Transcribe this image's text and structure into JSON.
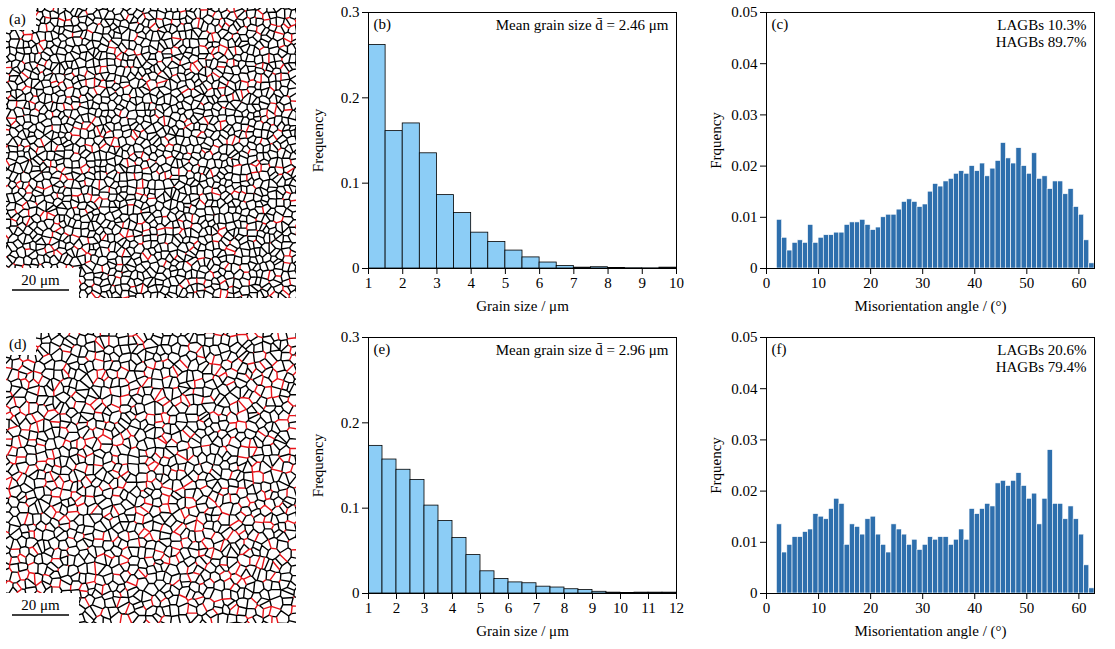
{
  "chart_data": [
    {
      "type": "image",
      "panel": "(a)",
      "scale_bar": {
        "value": 20,
        "label": "20 μm"
      },
      "mean_grain_size": 2.46,
      "lagbs": 10.3
    },
    {
      "type": "histogram",
      "panel": "(b)",
      "xlabel": "Grain size / μm",
      "ylabel": "Frequency",
      "annotations": [
        "Mean grain size d̄ = 2.46 μm"
      ],
      "color": "#8ccdf6",
      "bins": [
        1,
        1.5,
        2,
        2.5,
        3,
        3.5,
        4,
        4.5,
        5,
        5.5,
        6,
        6.5,
        7,
        7.5,
        8,
        8.5,
        9,
        9.5,
        10
      ],
      "counts": [
        0.262,
        0.161,
        0.17,
        0.135,
        0.086,
        0.065,
        0.042,
        0.031,
        0.021,
        0.013,
        0.007,
        0.003,
        0.001,
        0.0015,
        0.0005,
        0.0003,
        0.0002,
        0.001
      ],
      "xlim": [
        1,
        10
      ],
      "xticks": [
        1,
        2,
        3,
        4,
        5,
        6,
        7,
        8,
        9,
        10
      ],
      "ylim": [
        0,
        0.3
      ],
      "yticks": [
        0,
        0.1,
        0.2,
        0.3
      ]
    },
    {
      "type": "histogram",
      "panel": "(c)",
      "xlabel": "Misorientation angle / (°)",
      "ylabel": "Frquency",
      "annotations": [
        "LAGBs 10.3%",
        "HAGBs 89.7%"
      ],
      "color": "#2e6fad",
      "bins": [
        2,
        3,
        4,
        5,
        6,
        7,
        8,
        9,
        10,
        11,
        12,
        13,
        14,
        15,
        16,
        17,
        18,
        19,
        20,
        21,
        22,
        23,
        24,
        25,
        26,
        27,
        28,
        29,
        30,
        31,
        32,
        33,
        34,
        35,
        36,
        37,
        38,
        39,
        40,
        41,
        42,
        43,
        44,
        45,
        46,
        47,
        48,
        49,
        50,
        51,
        52,
        53,
        54,
        55,
        56,
        57,
        58,
        59,
        60,
        61,
        62,
        63
      ],
      "counts": [
        0.0095,
        0.006,
        0.0035,
        0.005,
        0.0055,
        0.005,
        0.0085,
        0.005,
        0.006,
        0.0065,
        0.0065,
        0.007,
        0.007,
        0.0085,
        0.009,
        0.009,
        0.0095,
        0.0085,
        0.0075,
        0.008,
        0.01,
        0.0105,
        0.0105,
        0.0115,
        0.013,
        0.0135,
        0.013,
        0.012,
        0.0125,
        0.015,
        0.0165,
        0.016,
        0.017,
        0.0175,
        0.0185,
        0.019,
        0.0185,
        0.02,
        0.019,
        0.0205,
        0.018,
        0.0195,
        0.021,
        0.0245,
        0.0215,
        0.0205,
        0.0235,
        0.02,
        0.0185,
        0.0225,
        0.0175,
        0.018,
        0.0155,
        0.017,
        0.017,
        0.0145,
        0.0155,
        0.012,
        0.0105,
        0.0055,
        0.001
      ],
      "xlim": [
        0,
        63
      ],
      "xticks": [
        0,
        10,
        20,
        30,
        40,
        50,
        60
      ],
      "ylim": [
        0,
        0.05
      ],
      "yticks": [
        0,
        0.01,
        0.02,
        0.03,
        0.04,
        0.05
      ]
    },
    {
      "type": "image",
      "panel": "(d)",
      "scale_bar": {
        "value": 20,
        "label": "20 μm"
      },
      "mean_grain_size": 2.96,
      "lagbs": 20.6
    },
    {
      "type": "histogram",
      "panel": "(e)",
      "xlabel": "Grain size / μm",
      "ylabel": "Frequency",
      "annotations": [
        "Mean grain size d̄ = 2.96 μm"
      ],
      "color": "#8ccdf6",
      "bins": [
        1,
        1.5,
        2,
        2.5,
        3,
        3.5,
        4,
        4.5,
        5,
        5.5,
        6,
        6.5,
        7,
        7.5,
        8,
        8.5,
        9,
        9.5,
        10,
        10.5,
        11,
        11.5,
        12
      ],
      "counts": [
        0.173,
        0.157,
        0.145,
        0.133,
        0.103,
        0.085,
        0.065,
        0.045,
        0.026,
        0.017,
        0.013,
        0.012,
        0.008,
        0.007,
        0.005,
        0.004,
        0.002,
        0.001,
        0.0005,
        0.001,
        0.001,
        0.001
      ],
      "xlim": [
        1,
        12
      ],
      "xticks": [
        1,
        2,
        3,
        4,
        5,
        6,
        7,
        8,
        9,
        10,
        11,
        12
      ],
      "ylim": [
        0,
        0.3
      ],
      "yticks": [
        0,
        0.1,
        0.2,
        0.3
      ]
    },
    {
      "type": "histogram",
      "panel": "(f)",
      "xlabel": "Misorientation angle / (°)",
      "ylabel": "Frquency",
      "annotations": [
        "LAGBs 20.6%",
        "HAGBs 79.4%"
      ],
      "color": "#2e6fad",
      "bins": [
        2,
        3,
        4,
        5,
        6,
        7,
        8,
        9,
        10,
        11,
        12,
        13,
        14,
        15,
        16,
        17,
        18,
        19,
        20,
        21,
        22,
        23,
        24,
        25,
        26,
        27,
        28,
        29,
        30,
        31,
        32,
        33,
        34,
        35,
        36,
        37,
        38,
        39,
        40,
        41,
        42,
        43,
        44,
        45,
        46,
        47,
        48,
        49,
        50,
        51,
        52,
        53,
        54,
        55,
        56,
        57,
        58,
        59,
        60,
        61,
        62,
        63
      ],
      "counts": [
        0.0135,
        0.008,
        0.0095,
        0.011,
        0.011,
        0.012,
        0.0125,
        0.0155,
        0.015,
        0.0145,
        0.0165,
        0.0185,
        0.0175,
        0.0095,
        0.0135,
        0.013,
        0.0115,
        0.0145,
        0.015,
        0.0115,
        0.0095,
        0.008,
        0.0135,
        0.0125,
        0.0115,
        0.0095,
        0.0105,
        0.0085,
        0.0095,
        0.011,
        0.0105,
        0.011,
        0.011,
        0.0095,
        0.0105,
        0.0125,
        0.0105,
        0.0165,
        0.0155,
        0.0165,
        0.0175,
        0.017,
        0.0215,
        0.022,
        0.021,
        0.022,
        0.0235,
        0.021,
        0.0185,
        0.0195,
        0.0135,
        0.0185,
        0.028,
        0.0175,
        0.0175,
        0.0145,
        0.017,
        0.0145,
        0.0115,
        0.0055,
        0.001
      ],
      "xlim": [
        0,
        63
      ],
      "xticks": [
        0,
        10,
        20,
        30,
        40,
        50,
        60
      ],
      "ylim": [
        0,
        0.05
      ],
      "yticks": [
        0,
        0.01,
        0.02,
        0.03,
        0.04,
        0.05
      ]
    }
  ]
}
